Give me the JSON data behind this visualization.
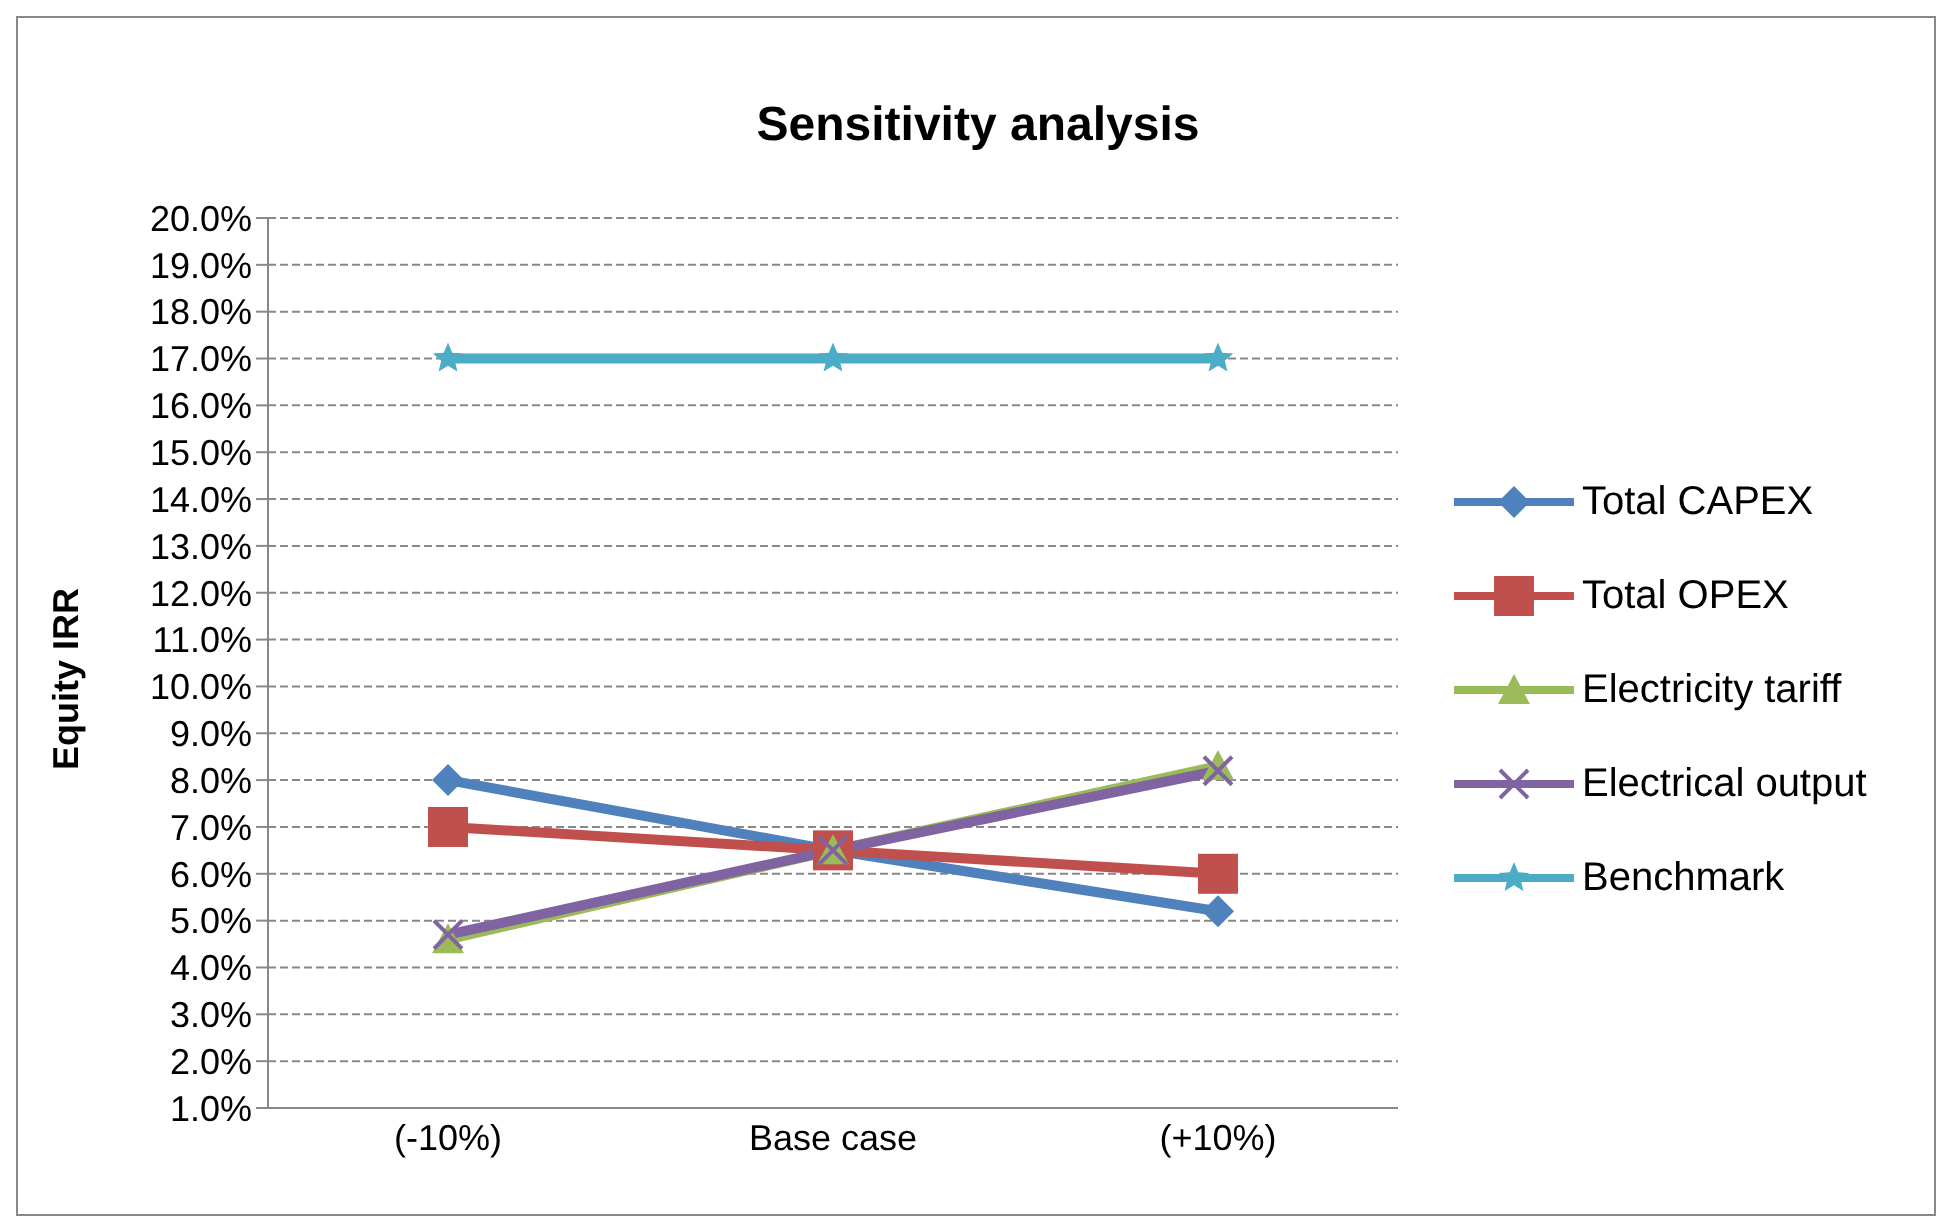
{
  "chart_data": {
    "type": "line",
    "title": "Sensitivity analysis",
    "ylabel": "Equity IRR",
    "categories": [
      "(-10%)",
      "Base case",
      "(+10%)"
    ],
    "series": [
      {
        "name": "Total CAPEX",
        "color": "#4f81bd",
        "marker": "diamond",
        "values": [
          8.0,
          6.5,
          5.2
        ]
      },
      {
        "name": "Total OPEX",
        "color": "#c0504d",
        "marker": "square",
        "values": [
          7.0,
          6.5,
          6.0
        ]
      },
      {
        "name": "Electricity tariff",
        "color": "#9bbb59",
        "marker": "triangle",
        "values": [
          4.6,
          6.5,
          8.3
        ]
      },
      {
        "name": "Electrical output",
        "color": "#8064a2",
        "marker": "cross",
        "values": [
          4.7,
          6.5,
          8.2
        ]
      },
      {
        "name": "Benchmark",
        "color": "#4bacc6",
        "marker": "star",
        "values": [
          17.0,
          17.0,
          17.0
        ]
      }
    ],
    "ylim": [
      1,
      20
    ],
    "yticks": [
      {
        "value": 1,
        "label": "1.0%"
      },
      {
        "value": 2,
        "label": "2.0%"
      },
      {
        "value": 3,
        "label": "3.0%"
      },
      {
        "value": 4,
        "label": "4.0%"
      },
      {
        "value": 5,
        "label": "5.0%"
      },
      {
        "value": 6,
        "label": "6.0%"
      },
      {
        "value": 7,
        "label": "7.0%"
      },
      {
        "value": 8,
        "label": "8.0%"
      },
      {
        "value": 9,
        "label": "9.0%"
      },
      {
        "value": 10,
        "label": "10.0%"
      },
      {
        "value": 11,
        "label": "11.0%"
      },
      {
        "value": 12,
        "label": "12.0%"
      },
      {
        "value": 13,
        "label": "13.0%"
      },
      {
        "value": 14,
        "label": "14.0%"
      },
      {
        "value": 15,
        "label": "15.0%"
      },
      {
        "value": 16,
        "label": "16.0%"
      },
      {
        "value": 17,
        "label": "17.0%"
      },
      {
        "value": 18,
        "label": "18.0%"
      },
      {
        "value": 19,
        "label": "19.0%"
      },
      {
        "value": 20,
        "label": "20.0%"
      }
    ],
    "grid": "y",
    "legend": "right",
    "line_style": "solid"
  }
}
